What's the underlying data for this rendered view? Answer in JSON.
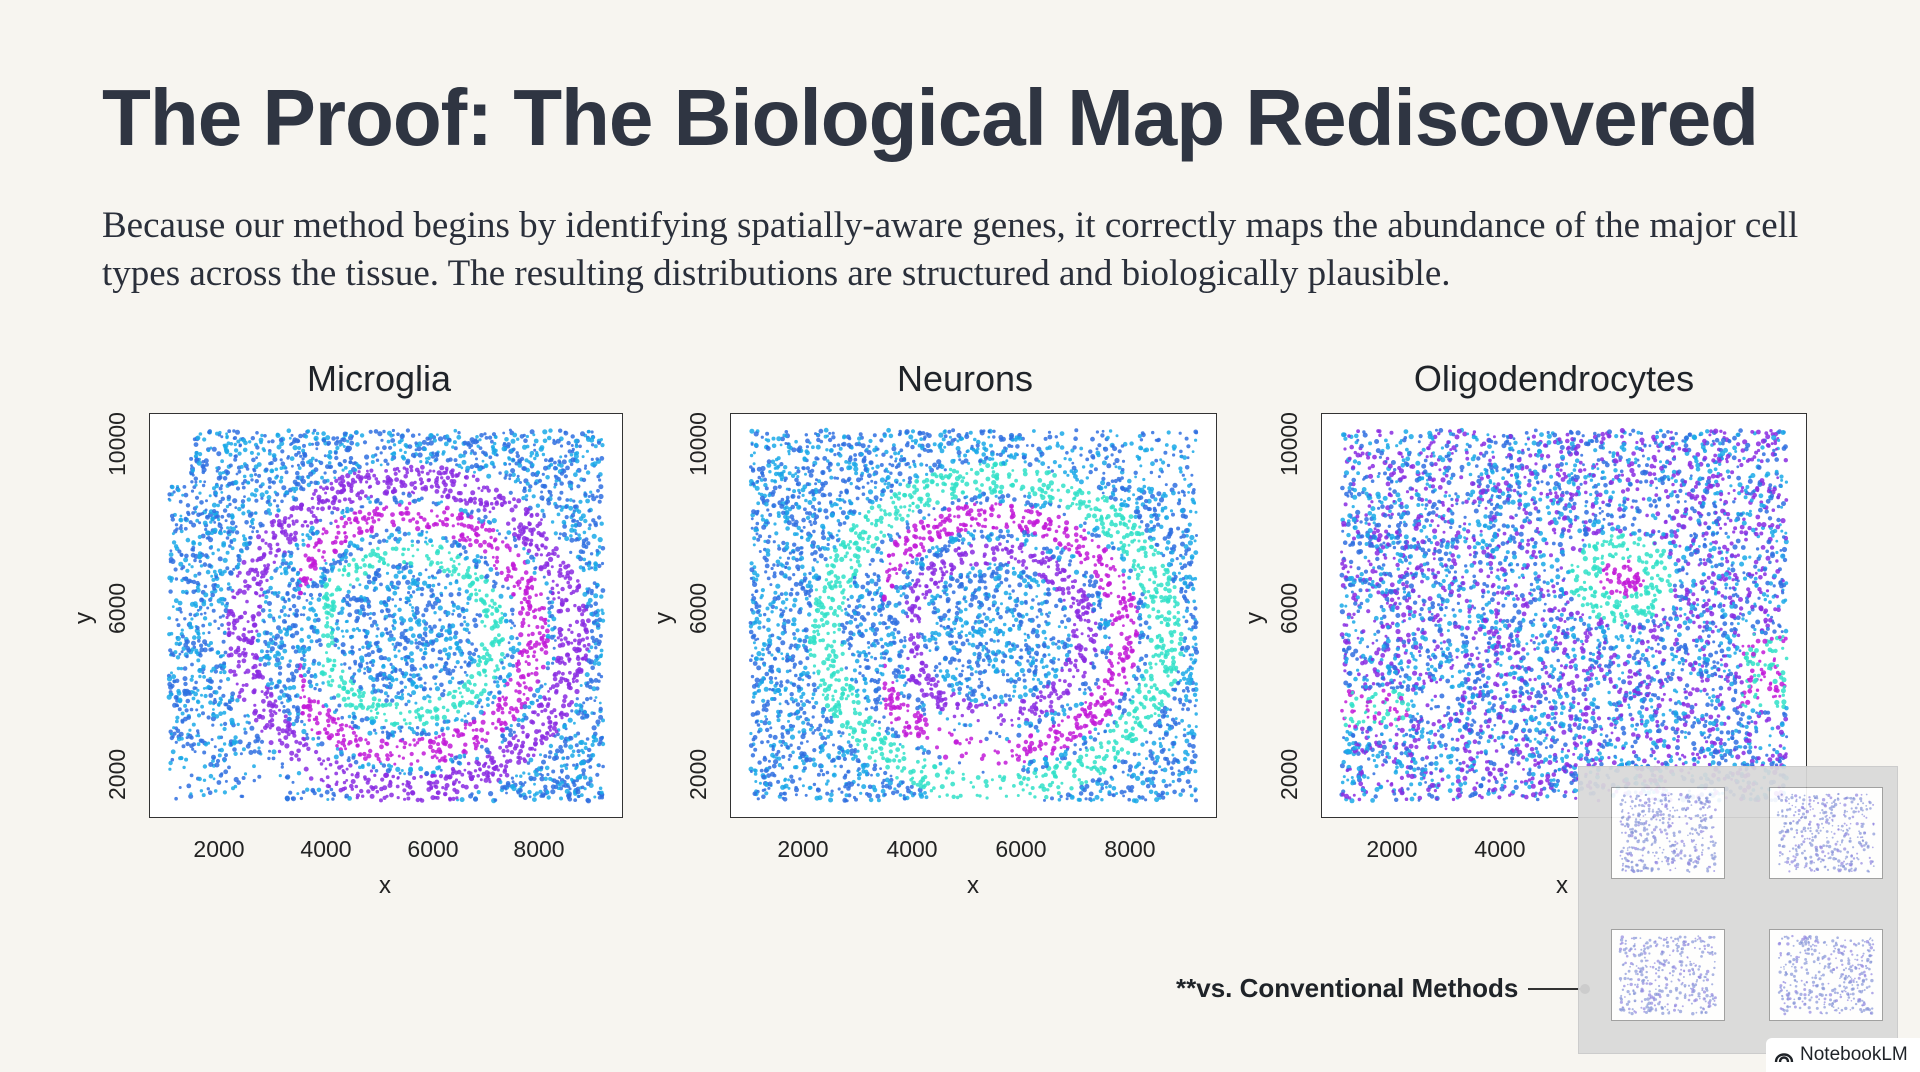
{
  "title": "The Proof: The Biological Map Rediscovered",
  "subtitle": "Because our method begins by identifying spatially-aware genes, it correctly maps the abundance of the major cell types across the tissue. The resulting distributions are structured and biologically plausible.",
  "panels": [
    {
      "title": "Microglia",
      "xlabel": "x",
      "ylabel": "y",
      "xticks": [
        "2000",
        "4000",
        "6000",
        "8000"
      ],
      "yticks": [
        "2000",
        "6000",
        "10000"
      ]
    },
    {
      "title": "Neurons",
      "xlabel": "x",
      "ylabel": "y",
      "xticks": [
        "2000",
        "4000",
        "6000",
        "8000"
      ],
      "yticks": [
        "2000",
        "6000",
        "10000"
      ]
    },
    {
      "title": "Oligodendrocytes",
      "xlabel": "x",
      "ylabel": "y",
      "xticks": [
        "2000",
        "4000"
      ],
      "yticks": [
        "2000",
        "6000",
        "10000"
      ]
    }
  ],
  "chart_data": [
    {
      "type": "scatter",
      "title": "Microglia",
      "xlabel": "x",
      "ylabel": "y",
      "xlim": [
        800,
        9600
      ],
      "ylim": [
        600,
        11200
      ],
      "colormap": [
        "#2f6fe0",
        "#1aa9e8",
        "#30e0c8",
        "#8a2be2",
        "#c21bd8"
      ]
    },
    {
      "type": "scatter",
      "title": "Neurons",
      "xlabel": "x",
      "ylabel": "y",
      "xlim": [
        800,
        9600
      ],
      "ylim": [
        600,
        11200
      ],
      "colormap": [
        "#2f6fe0",
        "#1aa9e8",
        "#30e0c8",
        "#8a2be2",
        "#c21bd8"
      ]
    },
    {
      "type": "scatter",
      "title": "Oligodendrocytes",
      "xlabel": "x",
      "ylabel": "y",
      "xlim": [
        800,
        9600
      ],
      "ylim": [
        600,
        11200
      ],
      "colormap": [
        "#2f6fe0",
        "#1aa9e8",
        "#30e0c8",
        "#8a2be2",
        "#c21bd8"
      ]
    }
  ],
  "comparison": {
    "label": "**vs. Conventional Methods"
  },
  "brand": {
    "name": "NotebookLM",
    "icon": "notebooklm-logo-icon"
  },
  "colors": {
    "background": "#f7f5f0",
    "title": "#2f3542",
    "tissue_blue": "#3b55e6",
    "tissue_magenta": "#b21fd6",
    "tissue_cyan": "#2fd8d0"
  }
}
